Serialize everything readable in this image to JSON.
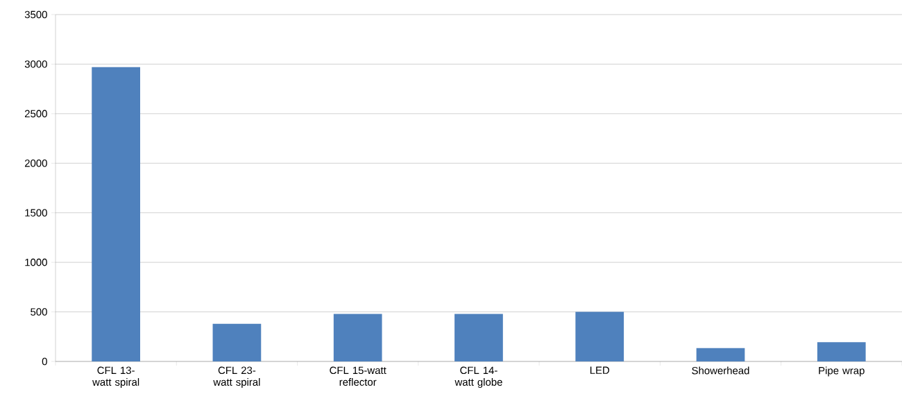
{
  "chart_data": {
    "type": "bar",
    "categories": [
      "CFL 13-watt spiral",
      "CFL 23-watt spiral",
      "CFL 15-watt reflector",
      "CFL 14-watt globe",
      "LED",
      "Showerhead",
      "Pipe wrap"
    ],
    "values": [
      2970,
      380,
      480,
      480,
      500,
      135,
      195
    ],
    "color": "#4f81bd",
    "ylim": [
      0,
      3500
    ],
    "yticks": [
      0,
      500,
      1000,
      1500,
      2000,
      2500,
      3000,
      3500
    ],
    "grid": "y"
  }
}
